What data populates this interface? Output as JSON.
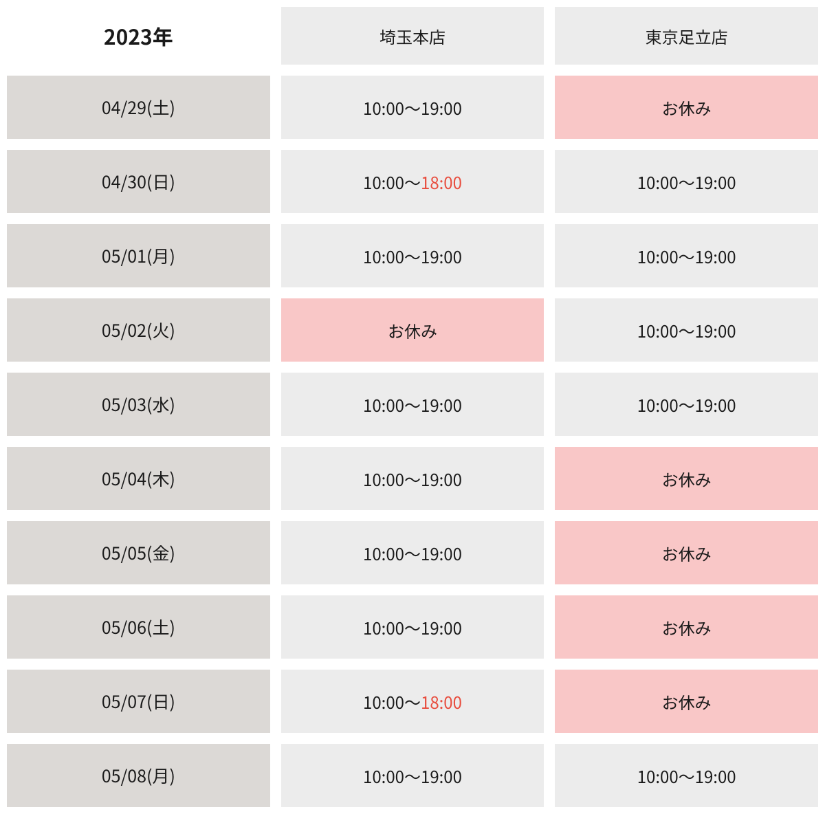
{
  "schedule": {
    "year_label": "2023年",
    "stores": [
      "埼玉本店",
      "東京足立店"
    ],
    "closed_label": "お休み",
    "colors": {
      "background": "#ffffff",
      "year_cell_bg": "#ffffff",
      "store_header_bg": "#ececec",
      "date_cell_bg": "#dcd9d6",
      "hours_cell_bg": "#ececec",
      "closed_cell_bg": "#f9c7c7",
      "text": "#1a1a1a",
      "highlight_red": "#e84c3d"
    },
    "typography": {
      "year_fontsize": 30,
      "year_fontweight": 700,
      "store_header_fontsize": 24,
      "date_fontsize": 25,
      "cell_fontsize": 24
    },
    "layout": {
      "row_gap": 16,
      "col_gap": 16,
      "header_row_height": 84,
      "data_row_height": 92
    },
    "rows": [
      {
        "date": "04/29(土)",
        "cells": [
          {
            "type": "hours",
            "text": "10:00～19:00"
          },
          {
            "type": "closed",
            "text": "お休み"
          }
        ]
      },
      {
        "date": "04/30(日)",
        "cells": [
          {
            "type": "hours",
            "prefix": "10:00～",
            "highlight": "18:00"
          },
          {
            "type": "hours",
            "text": "10:00～19:00"
          }
        ]
      },
      {
        "date": "05/01(月)",
        "cells": [
          {
            "type": "hours",
            "text": "10:00～19:00"
          },
          {
            "type": "hours",
            "text": "10:00～19:00"
          }
        ]
      },
      {
        "date": "05/02(火)",
        "cells": [
          {
            "type": "closed",
            "text": "お休み"
          },
          {
            "type": "hours",
            "text": "10:00～19:00"
          }
        ]
      },
      {
        "date": "05/03(水)",
        "cells": [
          {
            "type": "hours",
            "text": "10:00～19:00"
          },
          {
            "type": "hours",
            "text": "10:00～19:00"
          }
        ]
      },
      {
        "date": "05/04(木)",
        "cells": [
          {
            "type": "hours",
            "text": "10:00～19:00"
          },
          {
            "type": "closed",
            "text": "お休み"
          }
        ]
      },
      {
        "date": "05/05(金)",
        "cells": [
          {
            "type": "hours",
            "text": "10:00～19:00"
          },
          {
            "type": "closed",
            "text": "お休み"
          }
        ]
      },
      {
        "date": "05/06(土)",
        "cells": [
          {
            "type": "hours",
            "text": "10:00～19:00"
          },
          {
            "type": "closed",
            "text": "お休み"
          }
        ]
      },
      {
        "date": "05/07(日)",
        "cells": [
          {
            "type": "hours",
            "prefix": "10:00～",
            "highlight": "18:00"
          },
          {
            "type": "closed",
            "text": "お休み"
          }
        ]
      },
      {
        "date": "05/08(月)",
        "cells": [
          {
            "type": "hours",
            "text": "10:00～19:00"
          },
          {
            "type": "hours",
            "text": "10:00～19:00"
          }
        ]
      }
    ]
  }
}
